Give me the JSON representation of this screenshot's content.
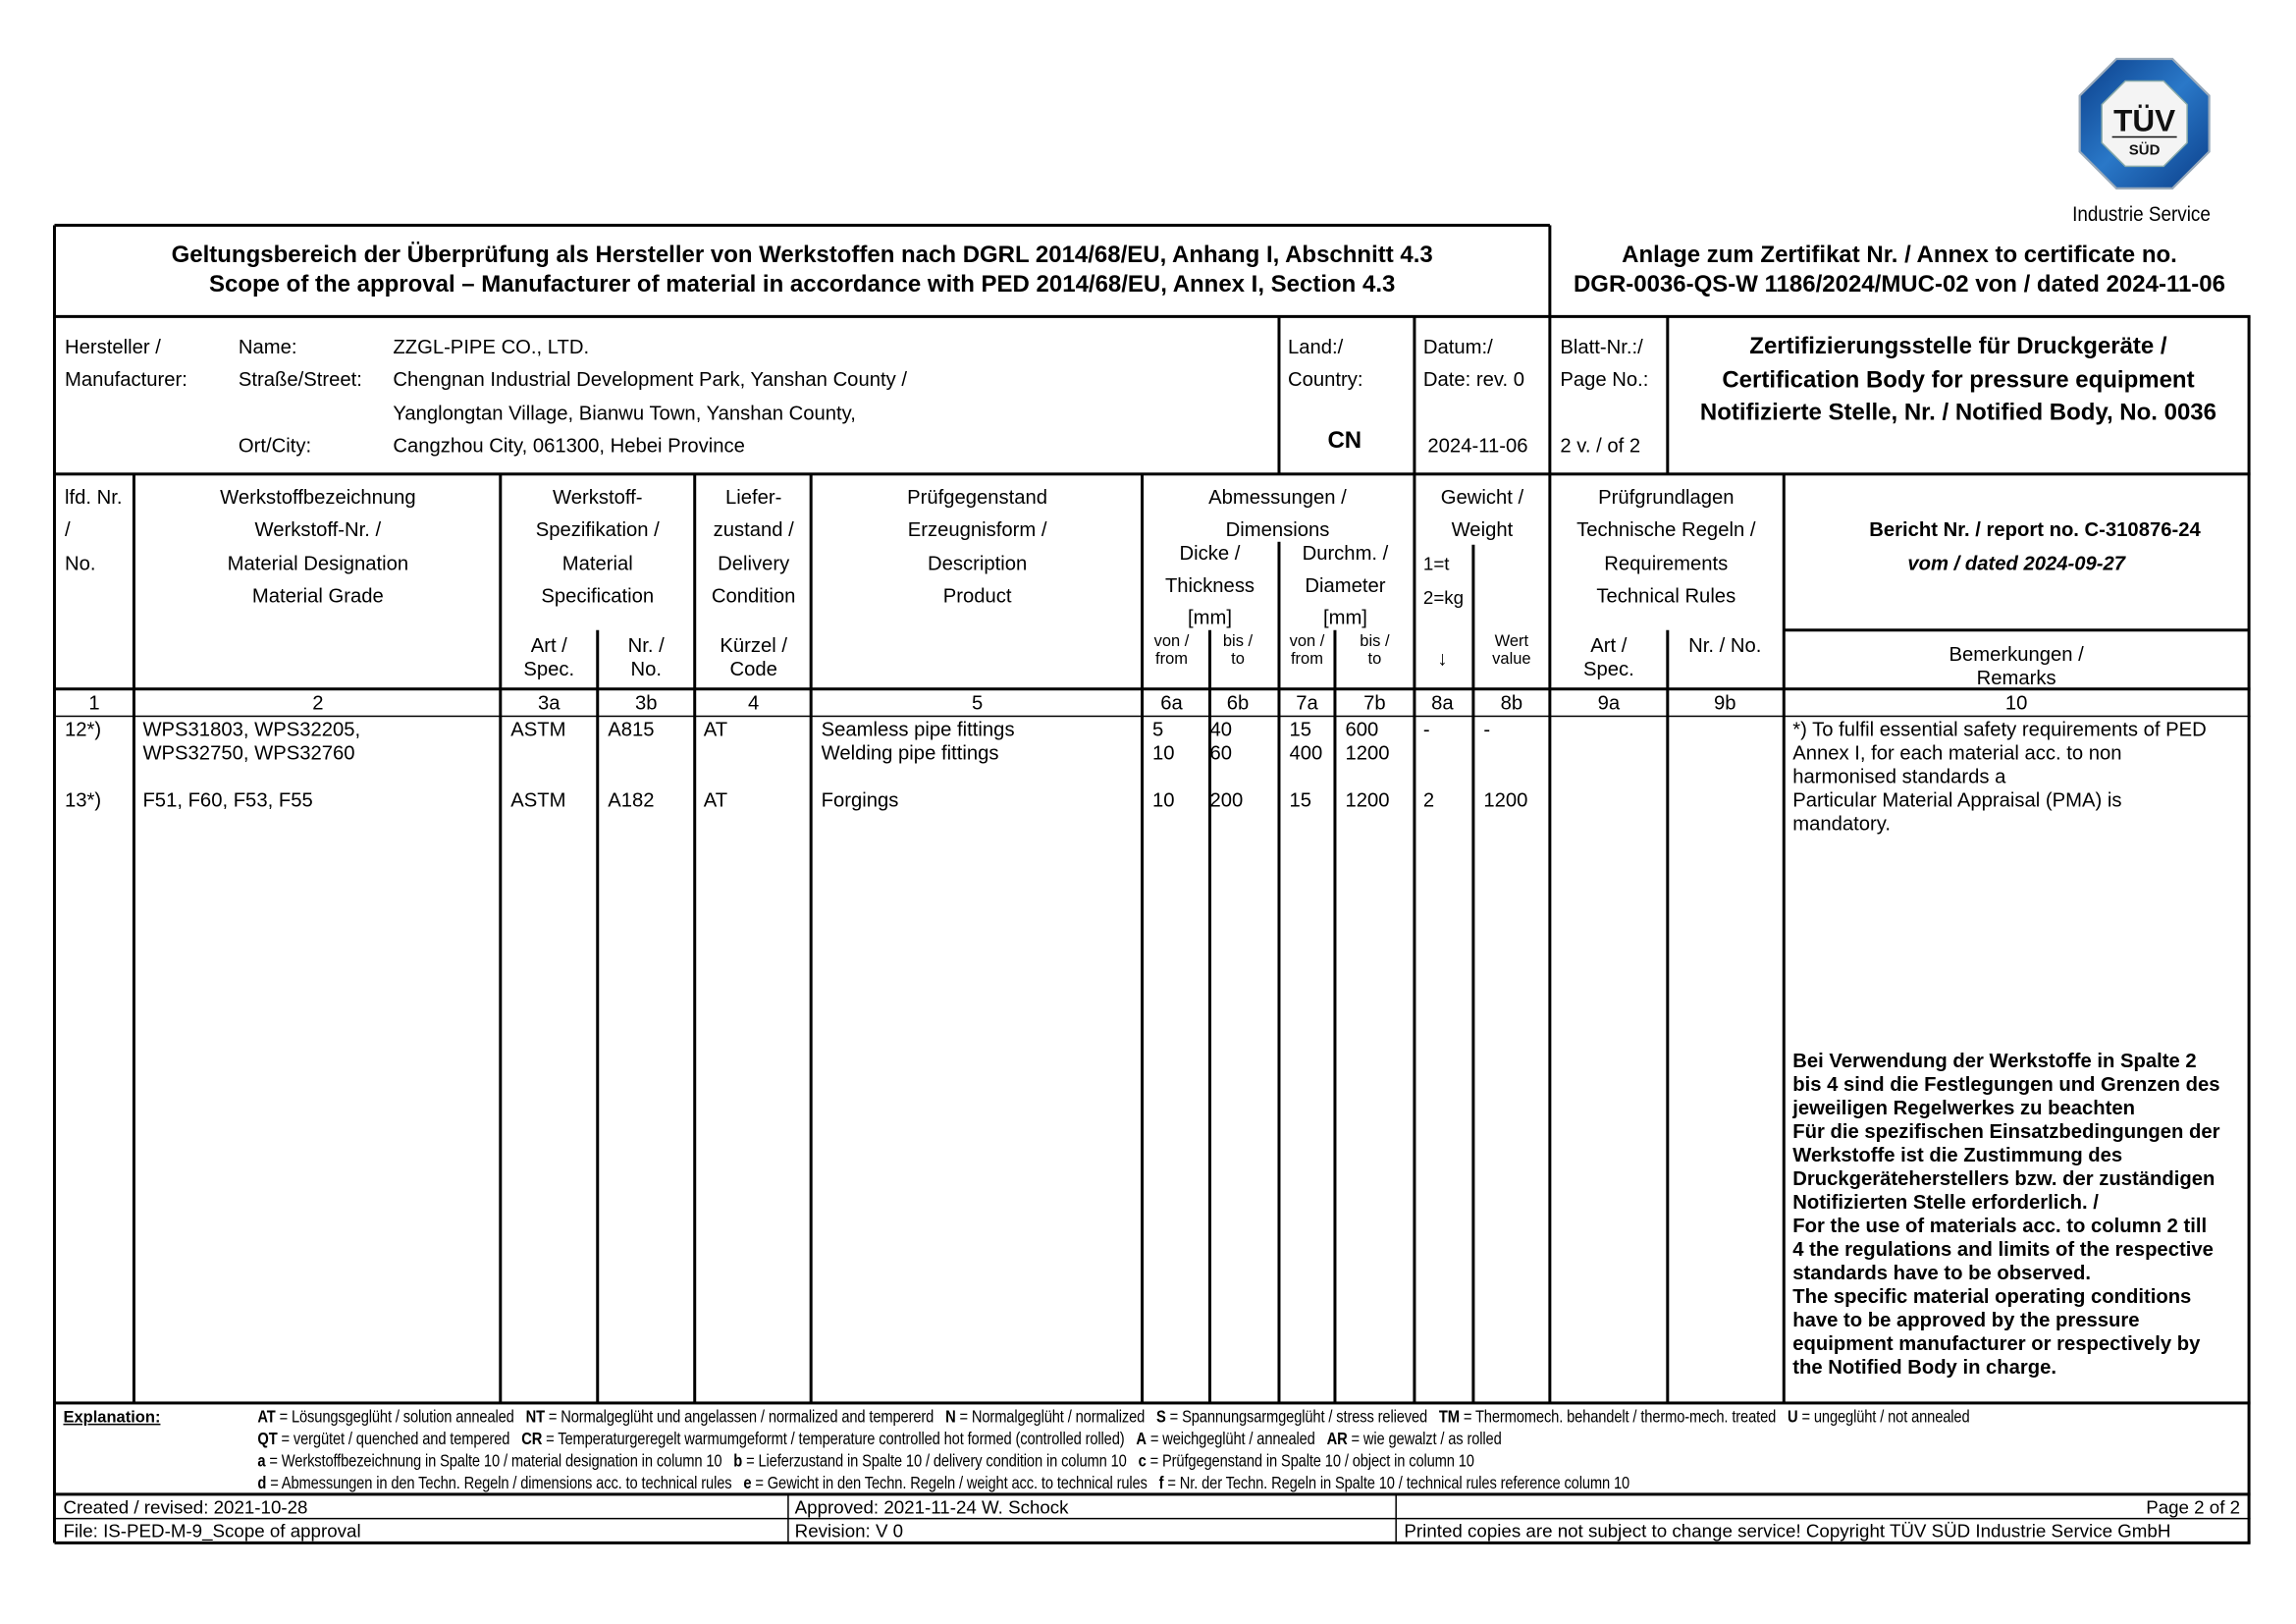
{
  "logo": {
    "brand_top": "TÜV",
    "brand_bottom": "SÜD",
    "subtitle": "Industrie Service",
    "color": "#1a5aa6"
  },
  "title": {
    "line1": "Geltungsbereich der Überprüfung als Hersteller von Werkstoffen nach DGRL 2014/68/EU, Anhang I, Abschnitt 4.3",
    "line2": "Scope of the approval – Manufacturer of material in accordance with PED 2014/68/EU, Annex I, Section 4.3",
    "annex_line1": "Anlage zum Zertifikat Nr. / Annex to certificate no.",
    "annex_line2": "DGR-0036-QS-W 1186/2024/MUC-02 von / dated 2024-11-06"
  },
  "manufacturer": {
    "label1": "Hersteller /",
    "label2": "Manufacturer:",
    "name_label": "Name:",
    "name": "ZZGL-PIPE CO., LTD.",
    "street_label": "Straße/Street:",
    "street1": "Chengnan Industrial Development Park, Yanshan County /",
    "street2": "Yanglongtan Village, Bianwu Town, Yanshan County,",
    "city_label": "Ort/City:",
    "city": "Cangzhou City, 061300, Hebei Province",
    "country_label1": "Land:/",
    "country_label2": "Country:",
    "country": "CN",
    "date_label1": "Datum:/",
    "date_label2": "Date: rev. 0",
    "date": "2024-11-06",
    "page_label1": "Blatt-Nr.:/",
    "page_label2": "Page No.:",
    "page": "2 v. / of 2",
    "cert_body1": "Zertifizierungsstelle für Druckgeräte /",
    "cert_body2": "Certification Body for pressure equipment",
    "cert_body3": "Notifizierte Stelle, Nr. / Notified Body, No. 0036"
  },
  "table_header": {
    "c1": [
      "lfd. Nr.",
      "/",
      "No."
    ],
    "c2": [
      "Werkstoffbezeichnung",
      "Werkstoff-Nr. /",
      "Material Designation",
      "Material Grade"
    ],
    "c3": [
      "Werkstoff-",
      "Spezifikation /",
      "Material",
      "Specification"
    ],
    "c3a": [
      "Art /",
      "Spec."
    ],
    "c3b": [
      "Nr. /",
      "No."
    ],
    "c4": [
      "Liefer-",
      "zustand /",
      "Delivery",
      "Condition"
    ],
    "c4sub": [
      "Kürzel /",
      "Code"
    ],
    "c5": [
      "Prüfgegenstand",
      "Erzeugnisform /",
      "Description",
      "Product"
    ],
    "c67": [
      "Abmessungen /",
      "Dimensions"
    ],
    "c6": [
      "Dicke /",
      "Thickness",
      "[mm]"
    ],
    "c7": [
      "Durchm. /",
      "Diameter",
      "[mm]"
    ],
    "from": [
      "von /",
      "from"
    ],
    "to": [
      "bis /",
      "to"
    ],
    "c8": [
      "Gewicht /",
      "Weight"
    ],
    "c8units": [
      "1=t",
      "2=kg"
    ],
    "c8a": "↓",
    "c8b": [
      "Wert",
      "value"
    ],
    "c9": [
      "Prüfgrundlagen",
      "Technische Regeln /",
      "Requirements",
      "Technical Rules"
    ],
    "c9a": [
      "Art /",
      "Spec."
    ],
    "c9b": "Nr. / No.",
    "c10_report": "Bericht Nr. / report no. C-310876-24",
    "c10_dated": "vom / dated 2024-09-27",
    "c10sub": [
      "Bemerkungen /",
      "Remarks"
    ],
    "numbers": [
      "1",
      "2",
      "3a",
      "3b",
      "4",
      "5",
      "6a",
      "6b",
      "7a",
      "7b",
      "8a",
      "8b",
      "9a",
      "9b",
      "10"
    ]
  },
  "rows": [
    {
      "no": "12*)",
      "grade": [
        "WPS31803, WPS32205,",
        "WPS32750, WPS32760"
      ],
      "spec": "ASTM",
      "spec_no": "A815",
      "code": "AT",
      "product": [
        "Seamless pipe fittings",
        "Welding pipe fittings"
      ],
      "t_from": [
        "5",
        "10"
      ],
      "t_to": [
        "40",
        "60"
      ],
      "d_from": [
        "15",
        "400"
      ],
      "d_to": [
        "600",
        "1200"
      ],
      "w_unit": "-",
      "w_value": "-"
    },
    {
      "no": "13*)",
      "grade": [
        "F51, F60, F53, F55"
      ],
      "spec": "ASTM",
      "spec_no": "A182",
      "code": "AT",
      "product": [
        "Forgings"
      ],
      "t_from": [
        "10"
      ],
      "t_to": [
        "200"
      ],
      "d_from": [
        "15"
      ],
      "d_to": [
        "1200"
      ],
      "w_unit": "2",
      "w_value": "1200"
    }
  ],
  "remarks": {
    "note": [
      "*) To fulfil essential safety requirements of PED",
      "Annex I, for each material acc. to non",
      "harmonised standards a",
      "Particular Material Appraisal (PMA) is",
      "mandatory."
    ],
    "bold": [
      "Bei Verwendung der Werkstoffe in Spalte 2",
      "bis 4 sind die Festlegungen und Grenzen des",
      "jeweiligen Regelwerkes zu beachten",
      "Für die spezifischen Einsatzbedingungen der",
      "Werkstoffe ist die Zustimmung des",
      "Druckgeräteherstellers bzw. der zuständigen",
      "Notifizierten Stelle erforderlich. /",
      "For the use of materials acc. to column 2 till",
      "4 the regulations and limits of the respective",
      "standards have to be observed.",
      "The specific material operating conditions",
      "have to be approved by the pressure",
      "equipment manufacturer or respectively by",
      "the Notified Body in charge."
    ]
  },
  "explanation": {
    "label": "Explanation:",
    "lines": [
      [
        {
          "code": "AT",
          "text": " = Lösungsgeglüht / solution annealed"
        },
        {
          "code": "NT",
          "text": " = Normalgeglüht und angelassen / normalized and tempererd"
        },
        {
          "code": "N",
          "text": " = Normalgeglüht / normalized"
        },
        {
          "code": "S",
          "text": " = Spannungsarmgeglüht / stress relieved"
        },
        {
          "code": "TM",
          "text": "  = Thermomech. behandelt / thermo-mech. treated"
        },
        {
          "code": "U",
          "text": " = ungeglüht / not annealed"
        }
      ],
      [
        {
          "code": "QT",
          "text": " = vergütet / quenched and tempered"
        },
        {
          "code": "CR",
          "text": " = Temperaturgeregelt warmumgeformt / temperature controlled hot formed (controlled rolled)"
        },
        {
          "code": "A",
          "text": " =  weichgeglüht / annealed"
        },
        {
          "code": "AR",
          "text": " = wie gewalzt / as rolled"
        }
      ],
      [
        {
          "code": "a",
          "text": " = Werkstoffbezeichnung in Spalte 10 / material designation in column 10"
        },
        {
          "code": "b",
          "text": " = Lieferzustand in Spalte 10 / delivery condition in column 10"
        },
        {
          "code": "c",
          "text": " = Prüfgegenstand in Spalte 10 / object in column 10"
        }
      ],
      [
        {
          "code": "d",
          "text": " = Abmessungen in den Techn. Regeln / dimensions acc. to technical rules"
        },
        {
          "code": "e",
          "text": " = Gewicht in den Techn. Regeln / weight acc. to technical rules"
        },
        {
          "code": "f",
          "text": " = Nr. der Techn. Regeln in Spalte 10 / technical rules reference column 10"
        }
      ]
    ]
  },
  "footer": {
    "created": "Created / revised: 2021-10-28",
    "approved": "Approved: 2021-11-24 W. Schock",
    "page": "Page 2 of 2",
    "file": "File: IS-PED-M-9_Scope of approval",
    "revision": "Revision:   V 0",
    "copyright": "Printed copies are not subject to change service! Copyright TÜV SÜD Industrie Service GmbH"
  }
}
